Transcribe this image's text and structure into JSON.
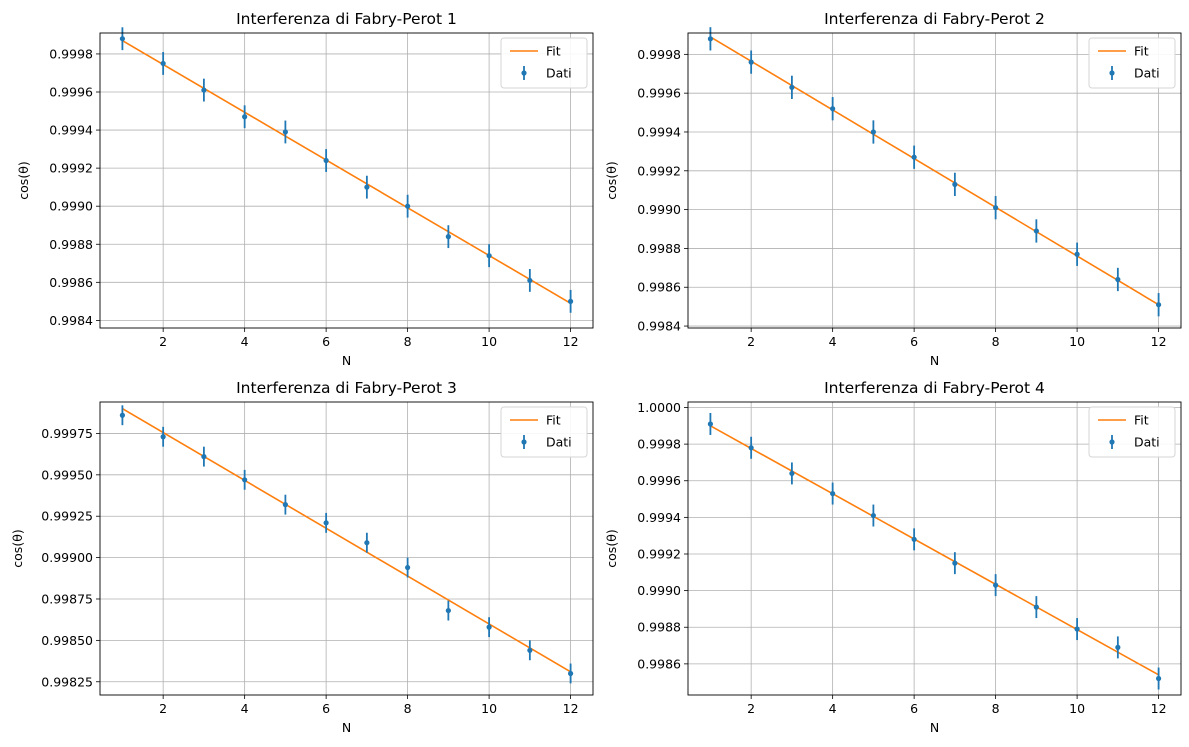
{
  "colors": {
    "fit": "#ff7f0e",
    "data": "#1f77b4",
    "grid": "#b0b0b0"
  },
  "chart_data": [
    {
      "type": "scatter",
      "title": "Interferenza di Fabry-Perot 1",
      "xlabel": "N",
      "ylabel": "cos(θ)",
      "grid": true,
      "legend": {
        "location": "top-right",
        "entries": [
          "Fit",
          "Dati"
        ]
      },
      "xlim": [
        0.45,
        12.55
      ],
      "ylim": [
        0.99836,
        0.99991
      ],
      "xticks": [
        2,
        4,
        6,
        8,
        10,
        12
      ],
      "xtick_labels": [
        "2",
        "4",
        "6",
        "8",
        "10",
        "12"
      ],
      "yticks": [
        0.9984,
        0.9986,
        0.9988,
        0.999,
        0.9992,
        0.9994,
        0.9996,
        0.9998
      ],
      "ytick_labels": [
        "0.9984",
        "0.9986",
        "0.9988",
        "0.9990",
        "0.9992",
        "0.9994",
        "0.9996",
        "0.9998"
      ],
      "series": [
        {
          "name": "Dati",
          "kind": "errorbar",
          "x": [
            1,
            2,
            3,
            4,
            5,
            6,
            7,
            8,
            9,
            10,
            11,
            12
          ],
          "y": [
            0.99988,
            0.99975,
            0.99961,
            0.99947,
            0.99939,
            0.99924,
            0.9991,
            0.999,
            0.99884,
            0.99874,
            0.99861,
            0.9985
          ],
          "yerr": 6e-05
        },
        {
          "name": "Fit",
          "kind": "line",
          "x": [
            1,
            12
          ],
          "y": [
            0.99987,
            0.99849
          ]
        }
      ]
    },
    {
      "type": "scatter",
      "title": "Interferenza di Fabry-Perot 2",
      "xlabel": "N",
      "ylabel": "cos(θ)",
      "grid": true,
      "legend": {
        "location": "top-right",
        "entries": [
          "Fit",
          "Dati"
        ]
      },
      "xlim": [
        0.45,
        12.55
      ],
      "ylim": [
        0.99839,
        0.99991
      ],
      "xticks": [
        2,
        4,
        6,
        8,
        10,
        12
      ],
      "xtick_labels": [
        "2",
        "4",
        "6",
        "8",
        "10",
        "12"
      ],
      "yticks": [
        0.9984,
        0.9986,
        0.9988,
        0.999,
        0.9992,
        0.9994,
        0.9996,
        0.9998
      ],
      "ytick_labels": [
        "0.9984",
        "0.9986",
        "0.9988",
        "0.9990",
        "0.9992",
        "0.9994",
        "0.9996",
        "0.9998"
      ],
      "series": [
        {
          "name": "Dati",
          "kind": "errorbar",
          "x": [
            1,
            2,
            3,
            4,
            5,
            6,
            7,
            8,
            9,
            10,
            11,
            12
          ],
          "y": [
            0.99988,
            0.99976,
            0.99963,
            0.99952,
            0.9994,
            0.99927,
            0.99913,
            0.99901,
            0.99889,
            0.99877,
            0.99864,
            0.99851
          ],
          "yerr": 6e-05
        },
        {
          "name": "Fit",
          "kind": "line",
          "x": [
            1,
            12
          ],
          "y": [
            0.99989,
            0.99851
          ]
        }
      ]
    },
    {
      "type": "scatter",
      "title": "Interferenza di Fabry-Perot 3",
      "xlabel": "N",
      "ylabel": "cos(θ)",
      "grid": true,
      "legend": {
        "location": "top-right",
        "entries": [
          "Fit",
          "Dati"
        ]
      },
      "xlim": [
        0.45,
        12.55
      ],
      "ylim": [
        0.99817,
        0.99994
      ],
      "xticks": [
        2,
        4,
        6,
        8,
        10,
        12
      ],
      "xtick_labels": [
        "2",
        "4",
        "6",
        "8",
        "10",
        "12"
      ],
      "yticks": [
        0.99825,
        0.9985,
        0.99875,
        0.999,
        0.99925,
        0.9995,
        0.99975
      ],
      "ytick_labels": [
        "0.99825",
        "0.99850",
        "0.99875",
        "0.99900",
        "0.99925",
        "0.99950",
        "0.99975"
      ],
      "series": [
        {
          "name": "Dati",
          "kind": "errorbar",
          "x": [
            1,
            2,
            3,
            4,
            5,
            6,
            7,
            8,
            9,
            10,
            11,
            12
          ],
          "y": [
            0.99986,
            0.99973,
            0.99961,
            0.99947,
            0.99932,
            0.99921,
            0.99909,
            0.99894,
            0.99868,
            0.99858,
            0.99844,
            0.9983
          ],
          "yerr": 6e-05
        },
        {
          "name": "Fit",
          "kind": "line",
          "x": [
            1,
            12
          ],
          "y": [
            0.9999,
            0.99831
          ]
        }
      ]
    },
    {
      "type": "scatter",
      "title": "Interferenza di Fabry-Perot 4",
      "xlabel": "N",
      "ylabel": "cos(θ)",
      "grid": true,
      "legend": {
        "location": "top-right",
        "entries": [
          "Fit",
          "Dati"
        ]
      },
      "xlim": [
        0.45,
        12.55
      ],
      "ylim": [
        0.99843,
        1.00003
      ],
      "xticks": [
        2,
        4,
        6,
        8,
        10,
        12
      ],
      "xtick_labels": [
        "2",
        "4",
        "6",
        "8",
        "10",
        "12"
      ],
      "yticks": [
        0.9986,
        0.9988,
        0.999,
        0.9992,
        0.9994,
        0.9996,
        0.9998,
        1.0
      ],
      "ytick_labels": [
        "0.9986",
        "0.9988",
        "0.9990",
        "0.9992",
        "0.9994",
        "0.9996",
        "0.9998",
        "1.0000"
      ],
      "series": [
        {
          "name": "Dati",
          "kind": "errorbar",
          "x": [
            1,
            2,
            3,
            4,
            5,
            6,
            7,
            8,
            9,
            10,
            11,
            12
          ],
          "y": [
            0.99991,
            0.99978,
            0.99964,
            0.99953,
            0.99941,
            0.99928,
            0.99915,
            0.99903,
            0.99891,
            0.99879,
            0.99869,
            0.99852
          ],
          "yerr": 6e-05
        },
        {
          "name": "Fit",
          "kind": "line",
          "x": [
            1,
            12
          ],
          "y": [
            0.9999,
            0.99854
          ]
        }
      ]
    }
  ]
}
